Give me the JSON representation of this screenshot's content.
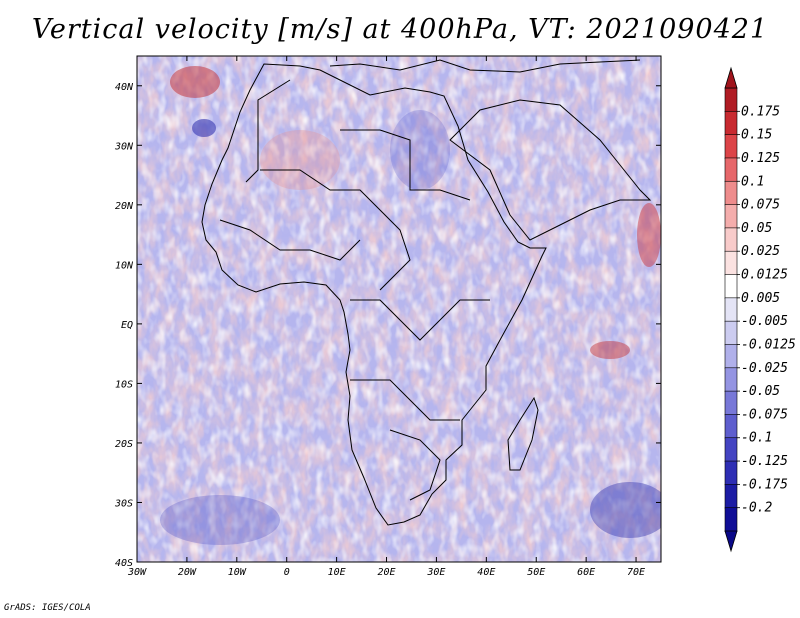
{
  "title": "Vertical velocity [m/s] at 400hPa, VT: 2021090421",
  "credit": "GrADS: IGES/COLA",
  "map": {
    "lon_range": [
      -30,
      75
    ],
    "lat_range": [
      -40,
      45
    ],
    "lon_ticks": [
      "30W",
      "20W",
      "10W",
      "0",
      "10E",
      "20E",
      "30E",
      "40E",
      "50E",
      "60E",
      "70E"
    ],
    "lat_ticks": [
      "40N",
      "30N",
      "20N",
      "10N",
      "EQ",
      "10S",
      "20S",
      "30S",
      "40S"
    ]
  },
  "colorbar": {
    "labels": [
      "0.175",
      "0.15",
      "0.125",
      "0.1",
      "0.075",
      "0.05",
      "0.025",
      "0.0125",
      "0.005",
      "-0.005",
      "-0.0125",
      "-0.025",
      "-0.05",
      "-0.075",
      "-0.1",
      "-0.125",
      "-0.175",
      "-0.2"
    ],
    "colors": [
      "#b01c24",
      "#c82a30",
      "#dc4448",
      "#e6676a",
      "#ee8c8c",
      "#f4adac",
      "#f8cbca",
      "#fbe2e1",
      "#ffffff",
      "#e4e4f6",
      "#ccccf0",
      "#b0b0ea",
      "#9494e2",
      "#7878d8",
      "#5e5ece",
      "#4444c2",
      "#2e2eb4",
      "#1c1ca4",
      "#100e96"
    ]
  }
}
